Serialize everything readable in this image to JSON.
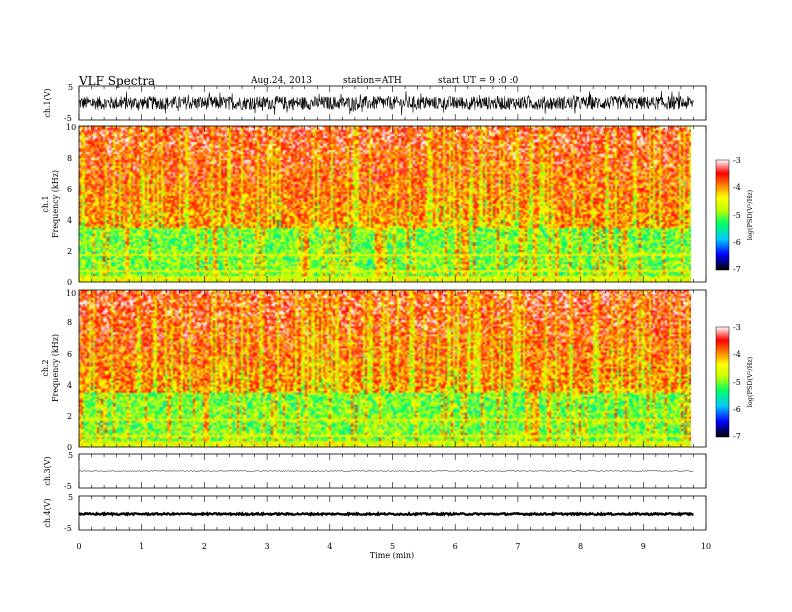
{
  "header": {
    "title": "VLF  Spectra",
    "date": "Aug.24, 2013",
    "station": "station=ATH",
    "start": "start  UT  =   9 :0 :0"
  },
  "x_axis": {
    "label": "Time  (min)",
    "range": [
      0,
      10
    ],
    "ticks": [
      "0",
      "1",
      "2",
      "3",
      "4",
      "5",
      "6",
      "7",
      "8",
      "9",
      "10"
    ]
  },
  "colorbar": {
    "label": "log(PSD(V²/Hz)",
    "range": [
      -7,
      -3
    ],
    "ticks": [
      "-3",
      "-4",
      "-5",
      "-6",
      "-7"
    ]
  },
  "chart_data": [
    {
      "type": "line",
      "id": "ch1-waveform",
      "ylabel": "ch.1(V)",
      "ylim": [
        -5,
        5
      ],
      "yticks": [
        "5",
        "-5"
      ],
      "xlim": [
        0,
        9.8
      ],
      "description_level": "dense noisy signal centered near 0 V with amplitude about ±2 V",
      "amplitude": 2.0,
      "baseline": 0.0
    },
    {
      "type": "heatmap",
      "id": "ch1-spectrogram",
      "ylabel_top": "ch.1",
      "ylabel": "Frequency  (kHz)",
      "ylim": [
        0,
        10
      ],
      "yticks": [
        "0",
        "2",
        "4",
        "6",
        "8",
        "10"
      ],
      "xlim": [
        0,
        9.8
      ],
      "zlim": [
        -7,
        -3
      ],
      "colorbar_label": "log(PSD(V²/Hz)"
    },
    {
      "type": "heatmap",
      "id": "ch2-spectrogram",
      "ylabel_top": "ch.2",
      "ylabel": "Frequency  (kHz)",
      "ylim": [
        0,
        10
      ],
      "yticks": [
        "0",
        "2",
        "4",
        "6",
        "8",
        "10"
      ],
      "xlim": [
        0,
        9.8
      ],
      "zlim": [
        -7,
        -3
      ],
      "colorbar_label": "log(PSD(V²/Hz)"
    },
    {
      "type": "line",
      "id": "ch3-waveform",
      "ylabel": "ch.3(V)",
      "ylim": [
        -5,
        5
      ],
      "yticks": [
        "5",
        "-5"
      ],
      "xlim": [
        0,
        9.8
      ],
      "baseline": 0.0,
      "amplitude": 0.15
    },
    {
      "type": "line",
      "id": "ch4-waveform",
      "ylabel": "ch.4(V)",
      "ylim": [
        -5,
        5
      ],
      "yticks": [
        "5",
        "-5"
      ],
      "xlim": [
        0,
        9.8
      ],
      "baseline": -0.3,
      "amplitude": 0.25
    }
  ],
  "colors": {
    "colormap": [
      "#000000",
      "#0000ff",
      "#00c8ff",
      "#00ff66",
      "#c8ff00",
      "#ffff00",
      "#ff8000",
      "#ff0000",
      "#ffffff"
    ]
  }
}
